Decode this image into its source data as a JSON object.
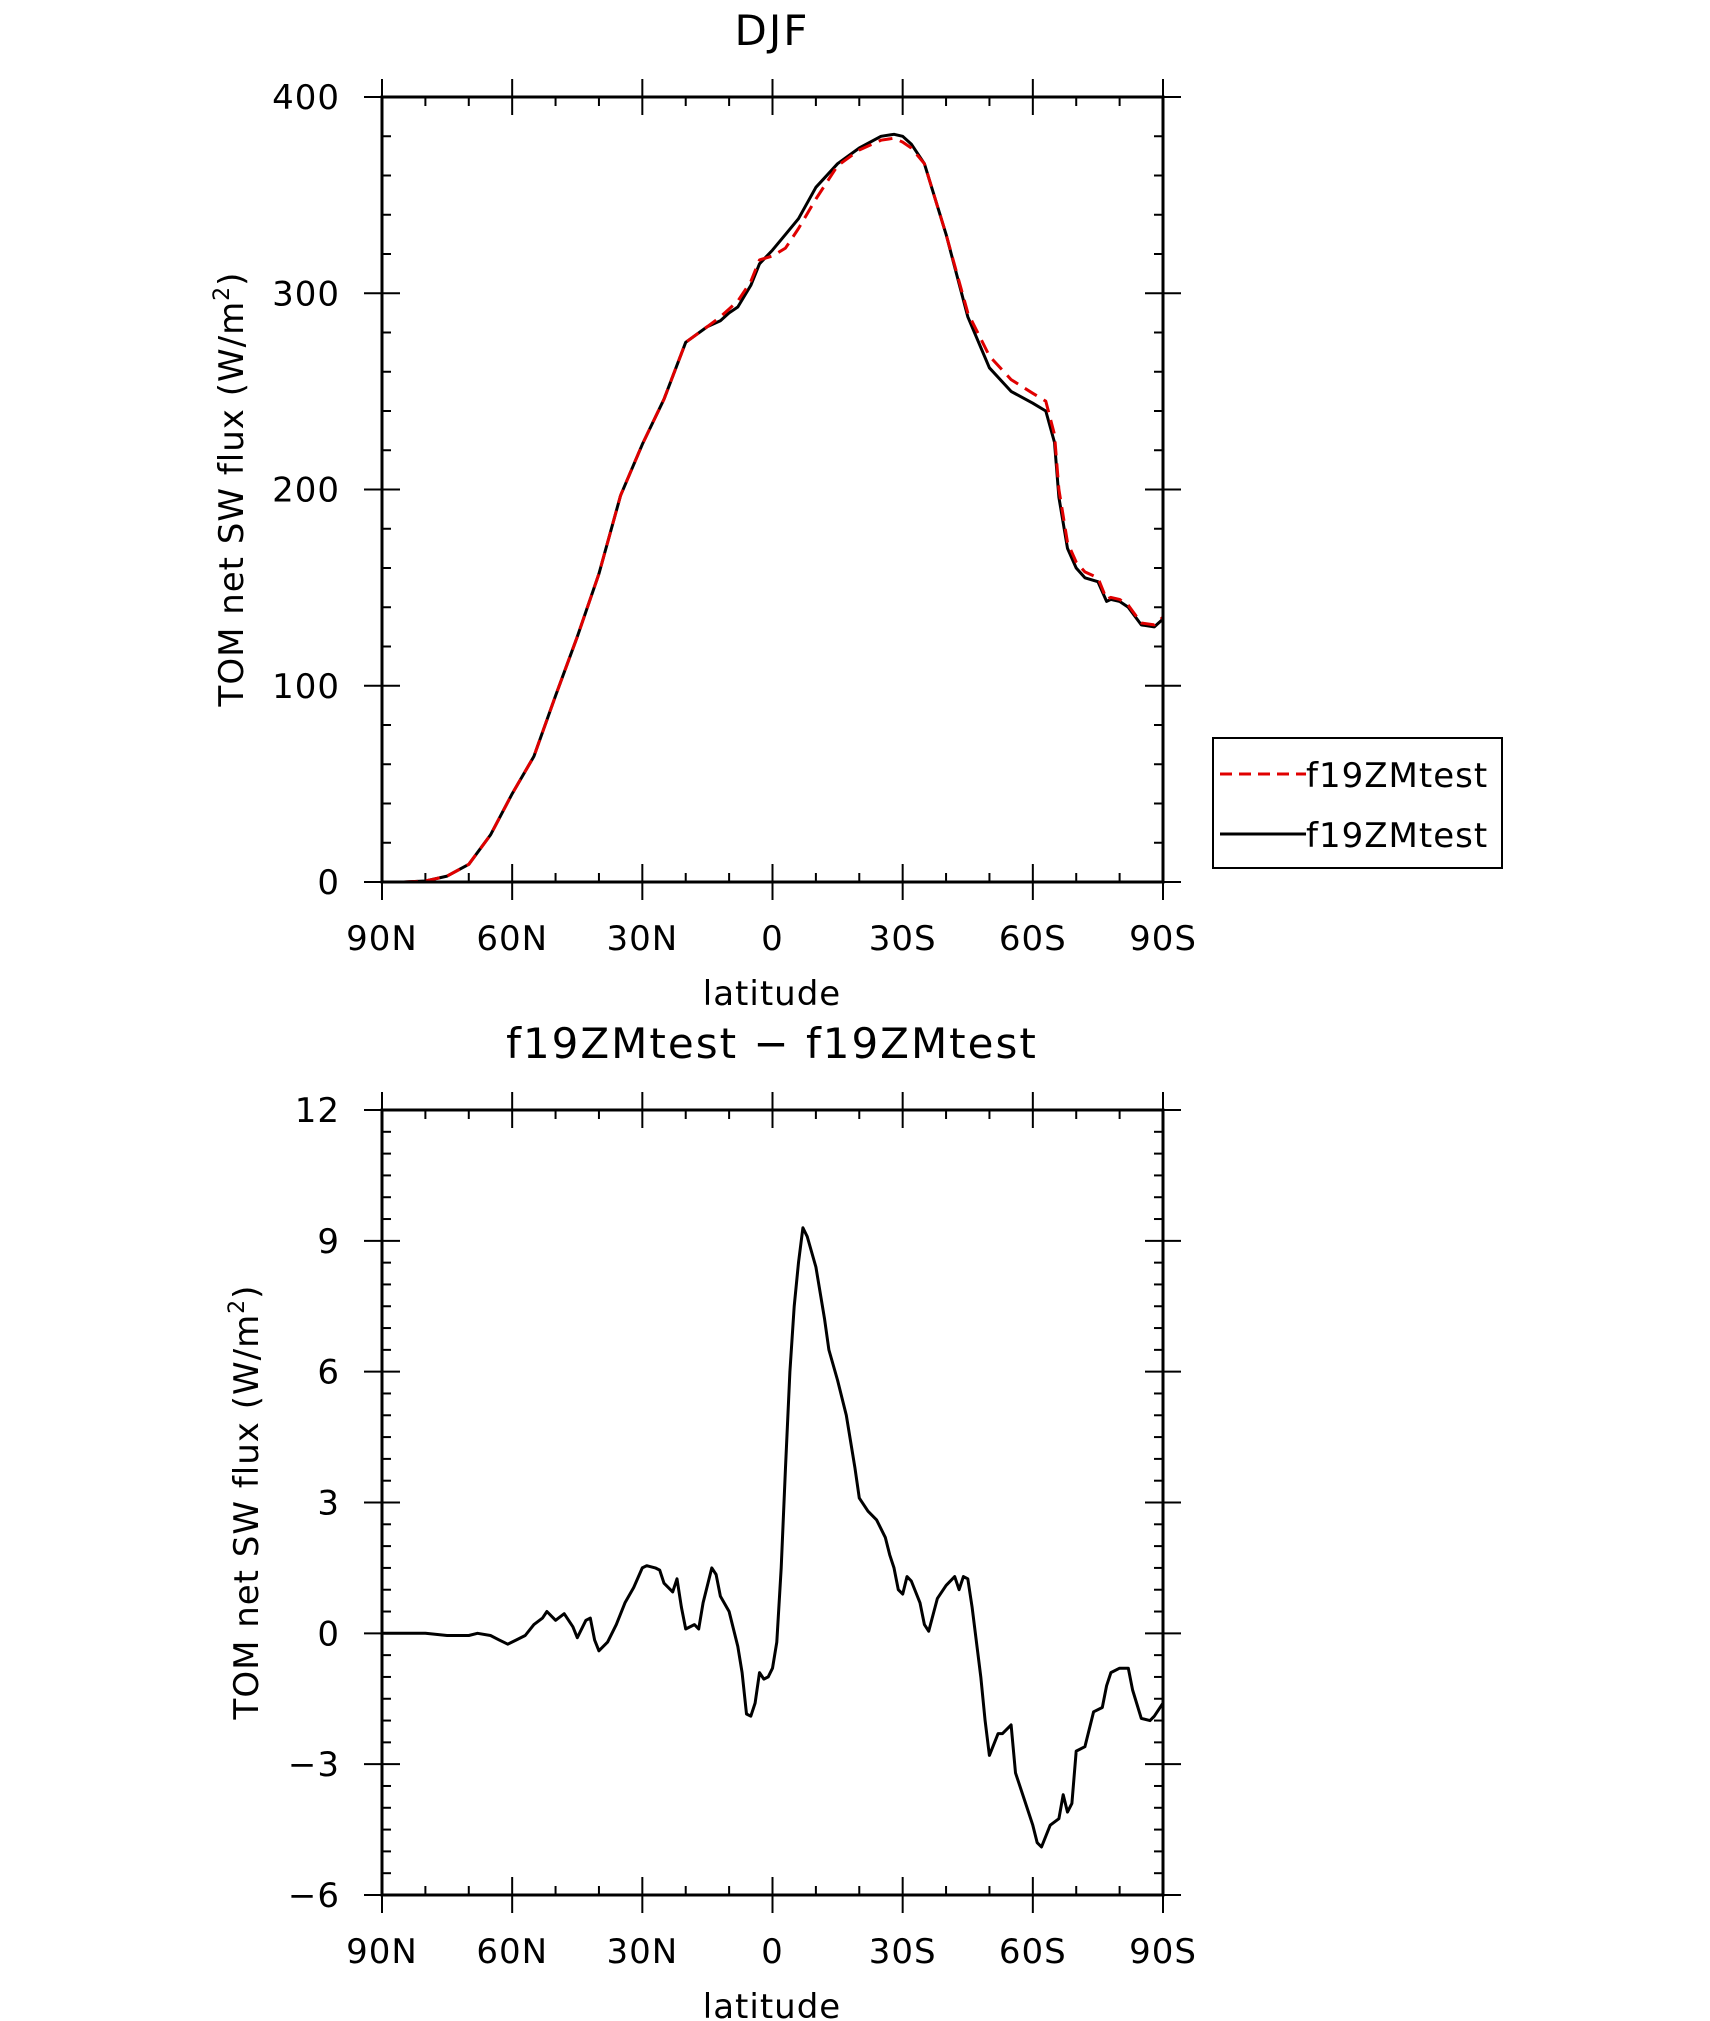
{
  "chart_data": [
    {
      "type": "line",
      "title": "DJF",
      "xlabel": "latitude",
      "ylabel_text": "TOM net SW flux (W/m",
      "ylabel_sup": "2",
      "ylabel_close": ")",
      "xlim": [
        90,
        -90
      ],
      "ylim": [
        0,
        400
      ],
      "xticks": [
        90,
        60,
        30,
        0,
        -30,
        -60,
        -90
      ],
      "xtick_labels": [
        "90N",
        "60N",
        "30N",
        "0",
        "30S",
        "60S",
        "90S"
      ],
      "yticks": [
        0,
        100,
        200,
        300,
        400
      ],
      "ytick_labels": [
        "0",
        "100",
        "200",
        "300",
        "400"
      ],
      "legend": {
        "location": "right"
      },
      "series": [
        {
          "name": "f19ZMtest",
          "color": "#e00000",
          "dash": "dashed",
          "x": [
            90,
            85,
            80,
            75,
            70,
            65,
            60,
            55,
            50,
            45,
            40,
            35,
            30,
            25,
            20,
            15,
            12,
            10,
            8,
            5,
            3,
            0,
            -3,
            -6,
            -10,
            -15,
            -20,
            -25,
            -28,
            -30,
            -32,
            -35,
            -40,
            -45,
            -50,
            -55,
            -60,
            -63,
            -65,
            -66,
            -68,
            -70,
            -72,
            -75,
            -77,
            -78,
            -80,
            -82,
            -85,
            -88,
            -90
          ],
          "y": [
            0,
            0,
            0.5,
            3,
            9,
            24,
            45,
            64,
            95,
            125,
            157,
            197,
            223,
            246,
            275,
            283,
            288,
            292,
            296,
            306,
            317,
            319,
            323,
            333,
            348,
            365,
            373,
            378,
            379,
            377,
            374,
            366,
            330,
            290,
            268,
            256,
            249,
            245,
            228,
            200,
            173,
            163,
            158,
            155,
            144,
            145,
            144,
            141,
            132,
            131,
            135
          ]
        },
        {
          "name": "f19ZMtest",
          "color": "#000000",
          "dash": "solid",
          "x": [
            90,
            85,
            80,
            75,
            70,
            65,
            60,
            55,
            50,
            45,
            40,
            35,
            30,
            25,
            20,
            15,
            12,
            10,
            8,
            5,
            3,
            0,
            -3,
            -6,
            -10,
            -15,
            -20,
            -25,
            -28,
            -30,
            -32,
            -35,
            -40,
            -45,
            -50,
            -55,
            -60,
            -63,
            -65,
            -66,
            -68,
            -70,
            -72,
            -75,
            -77,
            -78,
            -80,
            -82,
            -85,
            -88,
            -90
          ],
          "y": [
            0,
            0,
            0.5,
            3,
            9,
            24,
            45,
            64,
            95,
            125,
            157,
            197,
            223,
            246,
            275,
            283,
            286,
            290,
            293,
            304,
            315,
            322,
            330,
            338,
            354,
            366,
            374,
            380,
            381,
            380,
            376,
            366,
            330,
            288,
            262,
            250,
            244,
            240,
            224,
            196,
            170,
            160,
            155,
            153,
            143,
            144,
            143,
            140,
            131,
            130,
            134
          ]
        }
      ]
    },
    {
      "type": "line",
      "title": "f19ZMtest − f19ZMtest",
      "xlabel": "latitude",
      "ylabel_text": "TOM net SW flux (W/m",
      "ylabel_sup": "2",
      "ylabel_close": ")",
      "xlim": [
        90,
        -90
      ],
      "ylim": [
        -6,
        12
      ],
      "xticks": [
        90,
        60,
        30,
        0,
        -30,
        -60,
        -90
      ],
      "xtick_labels": [
        "90N",
        "60N",
        "30N",
        "0",
        "30S",
        "60S",
        "90S"
      ],
      "yticks": [
        -6,
        -3,
        0,
        3,
        6,
        9,
        12
      ],
      "ytick_labels": [
        "−6",
        "−3",
        "0",
        "3",
        "6",
        "9",
        "12"
      ],
      "series": [
        {
          "color": "#000000",
          "dash": "solid",
          "x": [
            90,
            80,
            75,
            70,
            68,
            65,
            63,
            61,
            59,
            57,
            55,
            53,
            52,
            50,
            48,
            47,
            46,
            45,
            43,
            42,
            41,
            40,
            38,
            36,
            34,
            32,
            30,
            29,
            27,
            26,
            25,
            23,
            22,
            21,
            20,
            18,
            17,
            16,
            14,
            13,
            12,
            10,
            8,
            7,
            6,
            5,
            4,
            3,
            2,
            1,
            0,
            -1,
            -2,
            -3,
            -4,
            -5,
            -6,
            -7,
            -8,
            -10,
            -12,
            -13,
            -15,
            -17,
            -19,
            -20,
            -22,
            -24,
            -26,
            -27,
            -28,
            -29,
            -30,
            -31,
            -32,
            -34,
            -35,
            -36,
            -38,
            -40,
            -42,
            -43,
            -44,
            -45,
            -46,
            -48,
            -49,
            -50,
            -52,
            -53,
            -55,
            -56,
            -58,
            -60,
            -61,
            -62,
            -64,
            -66,
            -67,
            -68,
            -69,
            -70,
            -72,
            -74,
            -76,
            -77,
            -78,
            -80,
            -82,
            -83,
            -85,
            -87,
            -88,
            -90
          ],
          "y": [
            0,
            0,
            -0.05,
            -0.05,
            0,
            -0.05,
            -0.15,
            -0.25,
            -0.15,
            -0.05,
            0.2,
            0.35,
            0.5,
            0.3,
            0.45,
            0.3,
            0.15,
            -0.1,
            0.3,
            0.35,
            -0.15,
            -0.4,
            -0.2,
            0.2,
            0.7,
            1.05,
            1.5,
            1.55,
            1.5,
            1.45,
            1.15,
            0.95,
            1.25,
            0.6,
            0.1,
            0.2,
            0.1,
            0.7,
            1.5,
            1.35,
            0.85,
            0.5,
            -0.3,
            -0.9,
            -1.85,
            -1.9,
            -1.6,
            -0.9,
            -1.05,
            -1.0,
            -0.8,
            -0.2,
            1.5,
            3.8,
            6.0,
            7.5,
            8.5,
            9.3,
            9.1,
            8.4,
            7.2,
            6.5,
            5.8,
            5.0,
            3.8,
            3.1,
            2.8,
            2.6,
            2.2,
            1.8,
            1.5,
            1.0,
            0.9,
            1.3,
            1.2,
            0.7,
            0.2,
            0.05,
            0.8,
            1.1,
            1.3,
            1.0,
            1.3,
            1.25,
            0.6,
            -1.0,
            -2.0,
            -2.8,
            -2.3,
            -2.3,
            -2.1,
            -3.2,
            -3.8,
            -4.4,
            -4.8,
            -4.9,
            -4.4,
            -4.25,
            -3.7,
            -4.1,
            -3.9,
            -2.7,
            -2.6,
            -1.8,
            -1.7,
            -1.2,
            -0.9,
            -0.8,
            -0.8,
            -1.3,
            -1.95,
            -2.0,
            -1.9,
            -1.6
          ]
        }
      ]
    }
  ]
}
